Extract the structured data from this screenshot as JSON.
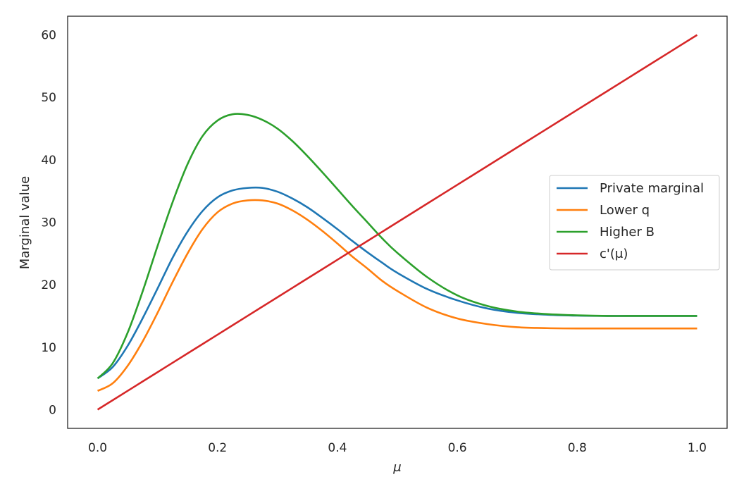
{
  "chart_data": {
    "type": "line",
    "title": "",
    "xlabel": "μ",
    "ylabel": "Marginal value",
    "xlim": [
      -0.05,
      1.05
    ],
    "ylim": [
      -3,
      63
    ],
    "xticks": [
      0.0,
      0.2,
      0.4,
      0.6,
      0.8,
      1.0
    ],
    "xtick_labels": [
      "0.0",
      "0.2",
      "0.4",
      "0.6",
      "0.8",
      "1.0"
    ],
    "yticks": [
      0,
      10,
      20,
      30,
      40,
      50,
      60
    ],
    "ytick_labels": [
      "0",
      "10",
      "20",
      "30",
      "40",
      "50",
      "60"
    ],
    "grid": false,
    "legend_position": "center-right",
    "x": [
      0.0,
      0.025,
      0.05,
      0.075,
      0.1,
      0.125,
      0.15,
      0.175,
      0.2,
      0.225,
      0.25,
      0.275,
      0.3,
      0.325,
      0.35,
      0.375,
      0.4,
      0.425,
      0.45,
      0.475,
      0.5,
      0.55,
      0.6,
      0.65,
      0.7,
      0.75,
      0.8,
      0.85,
      0.9,
      0.95,
      1.0
    ],
    "series": [
      {
        "name": "Private marginal",
        "color": "#1f77b4",
        "values": [
          5.0,
          6.8,
          10.2,
          14.6,
          19.4,
          24.3,
          28.5,
          31.8,
          34.0,
          35.1,
          35.5,
          35.5,
          34.9,
          33.8,
          32.4,
          30.7,
          28.9,
          27.0,
          25.2,
          23.5,
          21.9,
          19.3,
          17.5,
          16.2,
          15.5,
          15.2,
          15.05,
          15.0,
          15.0,
          15.0,
          15.0
        ]
      },
      {
        "name": "Lower q",
        "color": "#ff7f0e",
        "values": [
          3.0,
          4.2,
          7.0,
          10.9,
          15.5,
          20.4,
          25.0,
          28.9,
          31.6,
          33.0,
          33.5,
          33.5,
          33.0,
          31.9,
          30.4,
          28.6,
          26.6,
          24.5,
          22.6,
          20.6,
          19.0,
          16.3,
          14.6,
          13.7,
          13.2,
          13.05,
          13.0,
          13.0,
          13.0,
          13.0,
          13.0
        ]
      },
      {
        "name": "Higher B",
        "color": "#2ca02c",
        "values": [
          5.0,
          7.4,
          12.3,
          18.9,
          26.2,
          33.2,
          39.3,
          43.8,
          46.3,
          47.3,
          47.2,
          46.4,
          45.0,
          43.0,
          40.6,
          38.0,
          35.3,
          32.6,
          30.0,
          27.4,
          25.1,
          21.2,
          18.3,
          16.6,
          15.7,
          15.3,
          15.1,
          15.0,
          15.0,
          15.0,
          15.0
        ]
      },
      {
        "name": "c'(μ)",
        "color": "#d62728",
        "values": [
          0.0,
          1.5,
          3.0,
          4.5,
          6.0,
          7.5,
          9.0,
          10.5,
          12.0,
          13.5,
          15.0,
          16.5,
          18.0,
          19.5,
          21.0,
          22.5,
          24.0,
          25.5,
          27.0,
          28.5,
          30.0,
          33.0,
          36.0,
          39.0,
          42.0,
          45.0,
          48.0,
          51.0,
          54.0,
          57.0,
          60.0
        ]
      }
    ]
  }
}
